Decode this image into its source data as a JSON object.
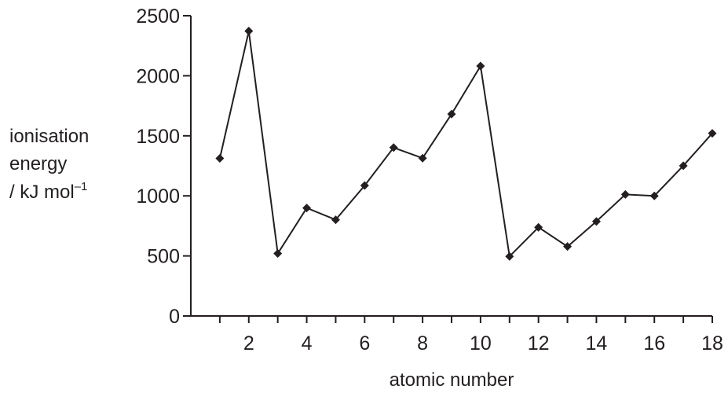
{
  "chart_data": {
    "type": "line",
    "x": [
      1,
      2,
      3,
      4,
      5,
      6,
      7,
      8,
      9,
      10,
      11,
      12,
      13,
      14,
      15,
      16,
      17,
      18
    ],
    "values": [
      1312,
      2372,
      520,
      899,
      801,
      1086,
      1402,
      1314,
      1681,
      2081,
      496,
      738,
      578,
      787,
      1012,
      1000,
      1251,
      1521
    ],
    "xlabel": "atomic number",
    "ylabel_lines": [
      "ionisation",
      "energy",
      "/ kJ mol",
      "–1"
    ],
    "xlim": [
      0,
      18
    ],
    "ylim": [
      0,
      2500
    ],
    "x_ticks": [
      2,
      4,
      6,
      8,
      10,
      12,
      14,
      16,
      18
    ],
    "x_tick_labels": [
      "2",
      "4",
      "6",
      "8",
      "10",
      "12",
      "14",
      "16",
      "18"
    ],
    "y_ticks": [
      0,
      500,
      1000,
      1500,
      2000,
      2500
    ],
    "y_tick_labels": [
      "0",
      "500",
      "1000",
      "1500",
      "2000",
      "2500"
    ],
    "marker": "diamond",
    "grid": false,
    "color": "#231f20"
  }
}
